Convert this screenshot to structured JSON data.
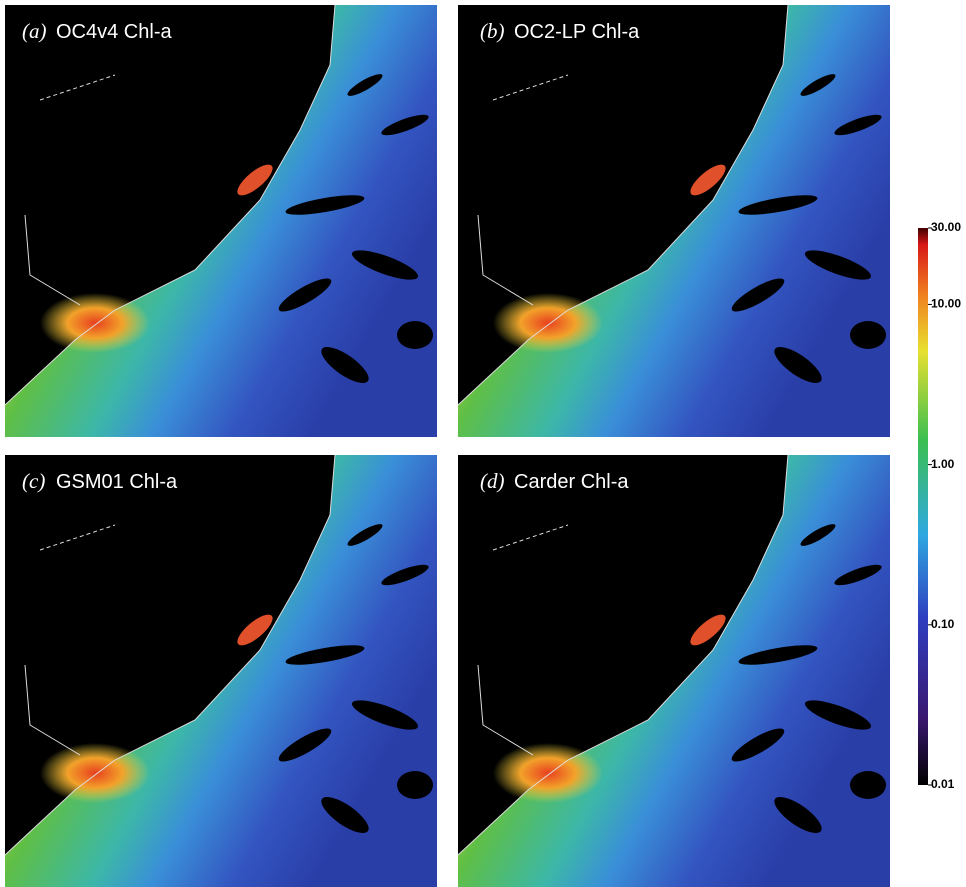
{
  "panels": [
    {
      "letter": "(a)",
      "title": "OC4v4 Chl-a"
    },
    {
      "letter": "(b)",
      "title": "OC2-LP Chl-a"
    },
    {
      "letter": "(c)",
      "title": "GSM01 Chl-a"
    },
    {
      "letter": "(d)",
      "title": "Carder Chl-a"
    }
  ],
  "colorbar": {
    "log_scale": true,
    "lim": [
      0.01,
      30
    ],
    "ticks": [
      {
        "value": 30,
        "label": "30.00"
      },
      {
        "value": 10,
        "label": "10.00"
      },
      {
        "value": 1,
        "label": "1.00"
      },
      {
        "value": 0.1,
        "label": "0.10"
      },
      {
        "value": 0.01,
        "label": "0.01"
      }
    ]
  }
}
